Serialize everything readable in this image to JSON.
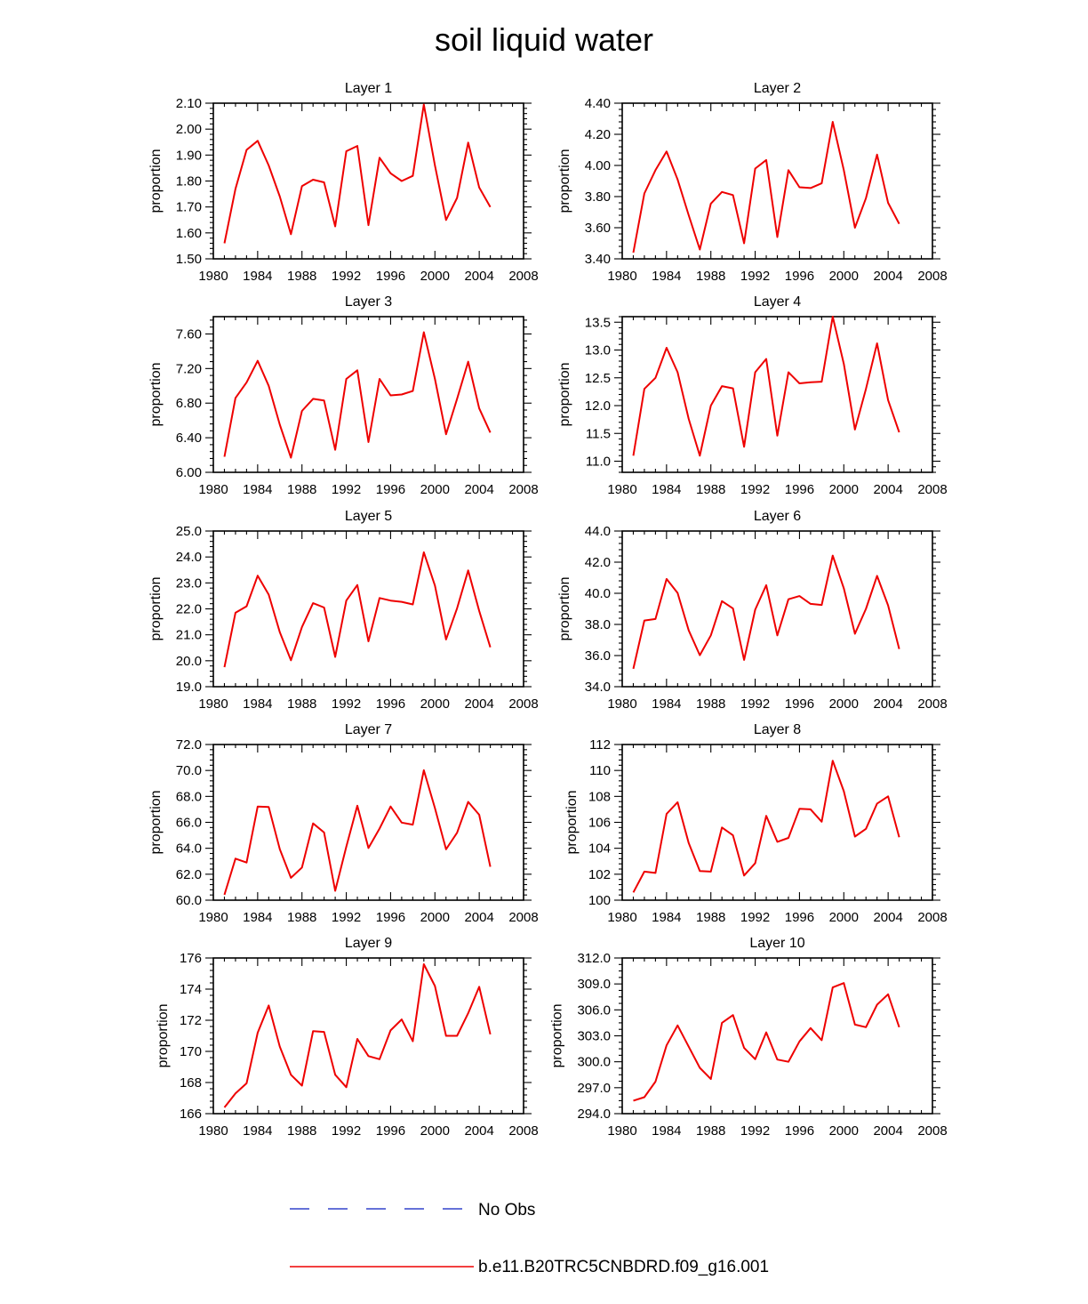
{
  "chart_data": {
    "type": "line",
    "title": "soil liquid water",
    "x": [
      1981,
      1982,
      1983,
      1984,
      1985,
      1986,
      1987,
      1988,
      1989,
      1990,
      1991,
      1992,
      1993,
      1994,
      1995,
      1996,
      1997,
      1998,
      1999,
      2000,
      2001,
      2002,
      2003,
      2004,
      2005
    ],
    "xlim": [
      1980,
      2008
    ],
    "xticks": [
      1980,
      1984,
      1988,
      1992,
      1996,
      2000,
      2004,
      2008
    ],
    "ylabel": "proportion",
    "legend": {
      "position": "bottom",
      "entries": [
        {
          "label": "No Obs",
          "color": "#3344cc",
          "style": "dashed"
        },
        {
          "label": "b.e11.B20TRC5CNBDRD.f09_g16.001",
          "color": "#ee0000",
          "style": "solid"
        }
      ]
    },
    "panels": [
      {
        "title": "Layer 1",
        "ylim": [
          1.5,
          2.1
        ],
        "yticks": [
          "1.50",
          "1.60",
          "1.70",
          "1.80",
          "1.90",
          "2.00",
          "2.10"
        ],
        "tickStep": 0.1,
        "minorPer": 4,
        "values": [
          1.56,
          1.77,
          1.92,
          1.955,
          1.86,
          1.74,
          1.595,
          1.78,
          1.805,
          1.795,
          1.625,
          1.915,
          1.935,
          1.63,
          1.89,
          1.83,
          1.8,
          1.82,
          2.095,
          1.86,
          1.65,
          1.735,
          1.948,
          1.775,
          1.7
        ]
      },
      {
        "title": "Layer 2",
        "ylim": [
          3.4,
          4.4
        ],
        "yticks": [
          "3.40",
          "3.60",
          "3.80",
          "4.00",
          "4.20",
          "4.40"
        ],
        "tickStep": 0.2,
        "minorPer": 4,
        "values": [
          3.44,
          3.82,
          3.97,
          4.09,
          3.91,
          3.68,
          3.46,
          3.755,
          3.83,
          3.81,
          3.5,
          3.98,
          4.035,
          3.54,
          3.97,
          3.86,
          3.855,
          3.885,
          4.28,
          3.97,
          3.6,
          3.79,
          4.07,
          3.76,
          3.625
        ]
      },
      {
        "title": "Layer 3",
        "ylim": [
          6.0,
          7.8
        ],
        "yticks": [
          "6.00",
          "6.40",
          "6.80",
          "7.20",
          "7.60"
        ],
        "tickStep": 0.4,
        "minorPer": 4,
        "values": [
          6.18,
          6.86,
          7.04,
          7.29,
          7.0,
          6.55,
          6.17,
          6.71,
          6.85,
          6.83,
          6.26,
          7.08,
          7.18,
          6.35,
          7.08,
          6.89,
          6.9,
          6.94,
          7.62,
          7.08,
          6.44,
          6.85,
          7.28,
          6.74,
          6.46
        ]
      },
      {
        "title": "Layer 4",
        "ylim": [
          10.8,
          13.6
        ],
        "yticks": [
          "11.0",
          "11.5",
          "12.0",
          "12.5",
          "13.0",
          "13.5"
        ],
        "tickStep": 0.5,
        "minorPer": 4,
        "values": [
          11.1,
          12.3,
          12.5,
          13.04,
          12.6,
          11.76,
          11.1,
          12.0,
          12.35,
          12.31,
          11.26,
          12.6,
          12.84,
          11.46,
          12.6,
          12.4,
          12.42,
          12.43,
          13.6,
          12.75,
          11.57,
          12.3,
          13.12,
          12.1,
          11.52
        ]
      },
      {
        "title": "Layer 5",
        "ylim": [
          19.0,
          25.0
        ],
        "yticks": [
          "19.0",
          "20.0",
          "21.0",
          "22.0",
          "23.0",
          "24.0",
          "25.0"
        ],
        "tickStep": 1.0,
        "minorPer": 4,
        "values": [
          19.75,
          21.85,
          22.1,
          23.28,
          22.55,
          21.1,
          20.02,
          21.3,
          22.22,
          22.05,
          20.15,
          22.32,
          22.92,
          20.75,
          22.42,
          22.32,
          22.27,
          22.17,
          24.18,
          22.9,
          20.82,
          22.02,
          23.48,
          21.92,
          20.52
        ]
      },
      {
        "title": "Layer 6",
        "ylim": [
          34.0,
          44.0
        ],
        "yticks": [
          "34.0",
          "36.0",
          "38.0",
          "40.0",
          "42.0",
          "44.0"
        ],
        "tickStep": 2.0,
        "minorPer": 4,
        "values": [
          35.15,
          38.25,
          38.35,
          40.92,
          40.02,
          37.62,
          36.02,
          37.3,
          39.5,
          39.02,
          35.72,
          38.95,
          40.52,
          37.3,
          39.62,
          39.82,
          39.32,
          39.25,
          42.42,
          40.32,
          37.4,
          39.0,
          41.12,
          39.22,
          36.42
        ]
      },
      {
        "title": "Layer 7",
        "ylim": [
          60.0,
          72.0
        ],
        "yticks": [
          "60.0",
          "62.0",
          "64.0",
          "66.0",
          "68.0",
          "70.0",
          "72.0"
        ],
        "tickStep": 2.0,
        "minorPer": 4,
        "values": [
          60.42,
          63.2,
          62.9,
          67.22,
          67.18,
          63.92,
          61.72,
          62.52,
          65.92,
          65.22,
          60.72,
          64.12,
          67.28,
          64.02,
          65.52,
          67.22,
          65.98,
          65.82,
          70.02,
          67.1,
          63.92,
          65.2,
          67.58,
          66.58,
          62.58
        ]
      },
      {
        "title": "Layer 8",
        "ylim": [
          100,
          112
        ],
        "yticks": [
          "100",
          "102",
          "104",
          "106",
          "108",
          "110",
          "112"
        ],
        "tickStep": 2,
        "minorPer": 4,
        "values": [
          100.6,
          102.2,
          102.1,
          106.65,
          107.55,
          104.4,
          102.25,
          102.2,
          105.6,
          105.0,
          101.9,
          102.85,
          106.5,
          104.5,
          104.8,
          107.05,
          107.0,
          106.05,
          110.75,
          108.4,
          104.9,
          105.5,
          107.45,
          108.0,
          104.85
        ]
      },
      {
        "title": "Layer 9",
        "ylim": [
          166,
          176
        ],
        "yticks": [
          "166",
          "168",
          "170",
          "172",
          "174",
          "176"
        ],
        "tickStep": 2,
        "minorPer": 4,
        "values": [
          166.4,
          167.3,
          167.95,
          171.2,
          172.95,
          170.3,
          168.5,
          167.8,
          171.3,
          171.25,
          168.5,
          167.7,
          170.8,
          169.7,
          169.5,
          171.35,
          172.05,
          170.65,
          175.6,
          174.2,
          171.0,
          171.0,
          172.45,
          174.15,
          171.1
        ]
      },
      {
        "title": "Layer 10",
        "ylim": [
          294.0,
          312.0
        ],
        "yticks": [
          "294.0",
          "297.0",
          "300.0",
          "303.0",
          "306.0",
          "309.0",
          "312.0"
        ],
        "tickStep": 3.0,
        "minorPer": 3,
        "values": [
          295.5,
          295.9,
          297.7,
          301.9,
          304.2,
          301.75,
          299.3,
          298.0,
          304.5,
          305.4,
          301.6,
          300.3,
          303.4,
          300.25,
          300.0,
          302.35,
          303.9,
          302.5,
          308.6,
          309.1,
          304.3,
          304.0,
          306.6,
          307.8,
          304.0
        ]
      }
    ]
  }
}
